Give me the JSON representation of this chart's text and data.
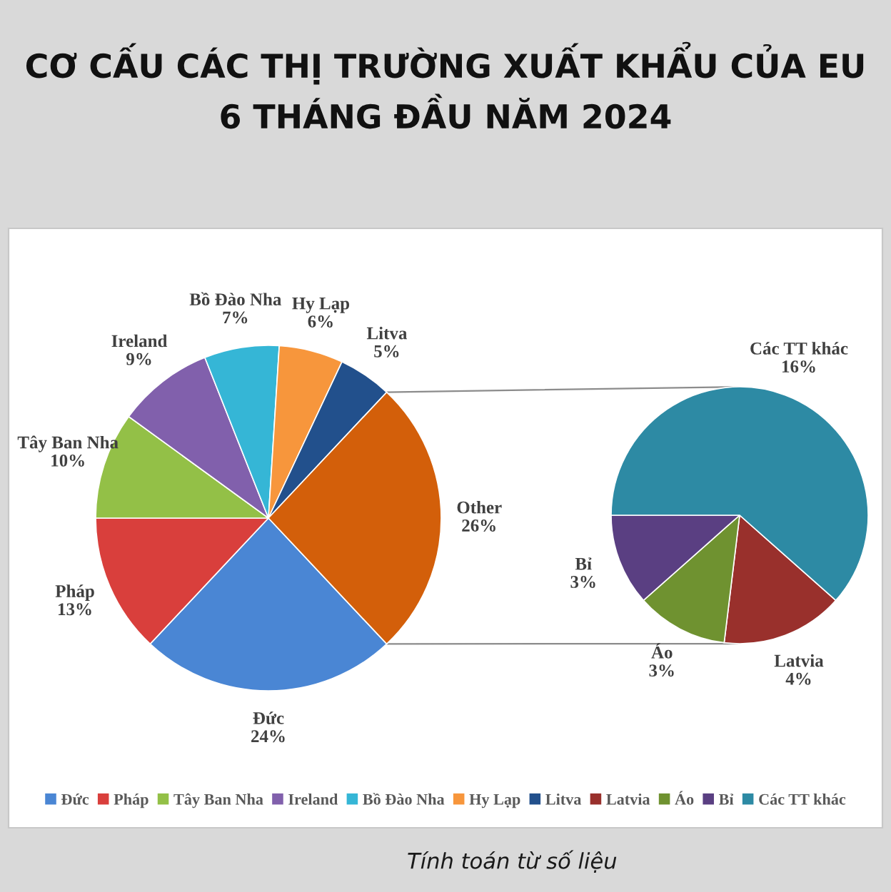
{
  "chart_data": [
    {
      "type": "pie",
      "title": "CƠ CẤU CÁC THỊ TRƯỜNG XUẤT KHẨU CỦA EU\n6 THÁNG ĐẦU NĂM 2024",
      "categories": [
        "Đức",
        "Pháp",
        "Tây Ban Nha",
        "Ireland",
        "Bồ Đào Nha",
        "Hy Lạp",
        "Litva",
        "Other"
      ],
      "values": [
        24,
        13,
        10,
        9,
        7,
        6,
        5,
        26
      ],
      "value_labels": [
        "24%",
        "13%",
        "10%",
        "9%",
        "7%",
        "6%",
        "5%",
        "26%"
      ],
      "colors": [
        "#4a86d4",
        "#d93f3c",
        "#93c047",
        "#8160ac",
        "#35b6d6",
        "#f7963c",
        "#22508c",
        "#d35f0a"
      ],
      "legend": "bottom",
      "annotations": [
        "Tính toán từ số liệu"
      ]
    },
    {
      "type": "pie",
      "categories": [
        "Latvia",
        "Áo",
        "Bỉ",
        "Các TT khác"
      ],
      "values": [
        4,
        3,
        3,
        16
      ],
      "value_labels": [
        "4%",
        "3%",
        "3%",
        "16%"
      ],
      "colors": [
        "#99302c",
        "#6f9230",
        "#5a3f82",
        "#2d8aa4"
      ],
      "legend": "bottom"
    }
  ]
}
